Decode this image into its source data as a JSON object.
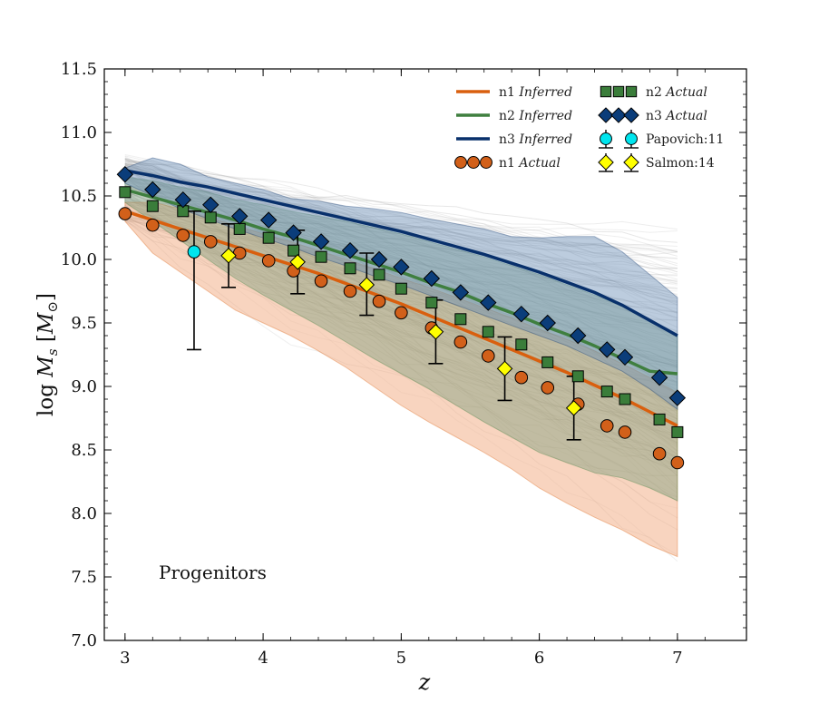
{
  "chart_data": {
    "type": "line",
    "title": "",
    "xlabel": "z",
    "ylabel_main": "log ",
    "ylabel_var": "M",
    "ylabel_sub": "s",
    "ylabel_unit_open": " [",
    "ylabel_unit_var": "M",
    "ylabel_unit_sub": "⊙",
    "ylabel_unit_close": "]",
    "xlim": [
      2.85,
      7.5
    ],
    "ylim": [
      7.0,
      11.5
    ],
    "xticks": [
      3,
      4,
      5,
      6,
      7
    ],
    "xtick_labels": [
      "3",
      "4",
      "5",
      "6",
      "7"
    ],
    "yticks": [
      7.0,
      7.5,
      8.0,
      8.5,
      9.0,
      9.5,
      10.0,
      10.5,
      11.0,
      11.5
    ],
    "ytick_labels": [
      "7.0",
      "7.5",
      "8.0",
      "8.5",
      "9.0",
      "9.5",
      "10.0",
      "10.5",
      "11.0",
      "11.5"
    ],
    "annotation": "Progenitors",
    "legend_position": "top-right",
    "colors": {
      "n1": "#d95f0e",
      "n2": "#3f7f3f",
      "n3": "#08306b",
      "n1_band": "#f0a070",
      "n2_band": "#7fa07f",
      "n3_band": "#6a8fb5",
      "papovich": "#00e5ee",
      "salmon": "#ffff00",
      "square_fill": "#3a7d3a",
      "diamond_fill": "#0b3d7a",
      "circle_fill": "#d2601a",
      "tracks": "#9a9a9a"
    },
    "inferred_x": [
      3,
      3.2,
      3.4,
      3.6,
      3.8,
      4.0,
      4.2,
      4.4,
      4.6,
      4.8,
      5.0,
      5.2,
      5.4,
      5.6,
      5.8,
      6.0,
      6.2,
      6.4,
      6.6,
      6.8,
      7.0
    ],
    "inferred_series": [
      {
        "name": "n1",
        "label": "n1",
        "label_em": "Inferred",
        "values": [
          10.38,
          10.31,
          10.24,
          10.17,
          10.1,
          10.03,
          9.96,
          9.89,
          9.81,
          9.73,
          9.65,
          9.56,
          9.47,
          9.38,
          9.29,
          9.2,
          9.11,
          9.01,
          8.91,
          8.8,
          8.69
        ],
        "band_low": [
          10.3,
          10.05,
          9.9,
          9.75,
          9.6,
          9.5,
          9.4,
          9.28,
          9.15,
          9.0,
          8.85,
          8.72,
          8.6,
          8.48,
          8.35,
          8.2,
          8.08,
          7.97,
          7.87,
          7.75,
          7.66
        ],
        "band_high": [
          10.45,
          10.45,
          10.4,
          10.33,
          10.27,
          10.2,
          10.14,
          10.07,
          10.0,
          9.93,
          9.85,
          9.78,
          9.7,
          9.62,
          9.54,
          9.45,
          9.37,
          9.28,
          9.18,
          9.07,
          8.95
        ]
      },
      {
        "name": "n2",
        "label": "n2",
        "label_em": "Inferred",
        "values": [
          10.55,
          10.49,
          10.43,
          10.37,
          10.31,
          10.24,
          10.18,
          10.11,
          10.04,
          9.97,
          9.9,
          9.82,
          9.75,
          9.66,
          9.58,
          9.49,
          9.41,
          9.32,
          9.22,
          9.12,
          9.1
        ],
        "band_low": [
          10.45,
          10.3,
          10.15,
          10.0,
          9.85,
          9.72,
          9.6,
          9.48,
          9.35,
          9.22,
          9.1,
          8.98,
          8.85,
          8.72,
          8.6,
          8.48,
          8.4,
          8.32,
          8.28,
          8.2,
          8.1
        ],
        "band_high": [
          10.65,
          10.62,
          10.57,
          10.53,
          10.47,
          10.43,
          10.38,
          10.34,
          10.3,
          10.25,
          10.2,
          10.14,
          10.08,
          10.02,
          9.95,
          9.88,
          9.8,
          9.72,
          9.63,
          9.52,
          9.4
        ]
      },
      {
        "name": "n3",
        "label": "n3",
        "label_em": "Inferred",
        "values": [
          10.7,
          10.66,
          10.61,
          10.57,
          10.52,
          10.47,
          10.42,
          10.37,
          10.32,
          10.27,
          10.22,
          10.16,
          10.1,
          10.04,
          9.97,
          9.9,
          9.82,
          9.74,
          9.64,
          9.52,
          9.4
        ],
        "band_low": [
          10.6,
          10.5,
          10.4,
          10.32,
          10.24,
          10.17,
          10.1,
          10.02,
          9.95,
          9.87,
          9.8,
          9.72,
          9.64,
          9.56,
          9.48,
          9.4,
          9.32,
          9.22,
          9.12,
          8.98,
          8.82
        ],
        "band_high": [
          10.72,
          10.8,
          10.75,
          10.65,
          10.6,
          10.55,
          10.48,
          10.46,
          10.42,
          10.4,
          10.37,
          10.32,
          10.28,
          10.24,
          10.18,
          10.17,
          10.18,
          10.18,
          10.06,
          9.88,
          9.7
        ]
      }
    ],
    "actual_series": [
      {
        "name": "n1",
        "label": "n1",
        "label_em": "Actual",
        "marker": "circle",
        "x": [
          3.0,
          3.2,
          3.42,
          3.62,
          3.83,
          4.04,
          4.22,
          4.42,
          4.63,
          4.84,
          5.0,
          5.22,
          5.43,
          5.63,
          5.87,
          6.06,
          6.28,
          6.49,
          6.62,
          6.87,
          7.0
        ],
        "y": [
          10.36,
          10.27,
          10.19,
          10.14,
          10.05,
          9.99,
          9.91,
          9.83,
          9.75,
          9.67,
          9.58,
          9.46,
          9.35,
          9.24,
          9.07,
          8.99,
          8.86,
          8.69,
          8.64,
          8.47,
          8.4
        ]
      },
      {
        "name": "n2",
        "label": "n2",
        "label_em": "Actual",
        "marker": "square",
        "x": [
          3.0,
          3.2,
          3.42,
          3.62,
          3.83,
          4.04,
          4.22,
          4.42,
          4.63,
          4.84,
          5.0,
          5.22,
          5.43,
          5.63,
          5.87,
          6.06,
          6.28,
          6.49,
          6.62,
          6.87,
          7.0
        ],
        "y": [
          10.53,
          10.42,
          10.38,
          10.33,
          10.24,
          10.17,
          10.07,
          10.02,
          9.93,
          9.88,
          9.77,
          9.66,
          9.53,
          9.43,
          9.33,
          9.19,
          9.08,
          8.96,
          8.9,
          8.74,
          8.64
        ]
      },
      {
        "name": "n3",
        "label": "n3",
        "label_em": "Actual",
        "marker": "diamond",
        "x": [
          3.0,
          3.2,
          3.42,
          3.62,
          3.83,
          4.04,
          4.22,
          4.42,
          4.63,
          4.84,
          5.0,
          5.22,
          5.43,
          5.63,
          5.87,
          6.06,
          6.28,
          6.49,
          6.62,
          6.87,
          7.0
        ],
        "y": [
          10.67,
          10.55,
          10.47,
          10.43,
          10.34,
          10.31,
          10.21,
          10.14,
          10.07,
          10.0,
          9.94,
          9.85,
          9.74,
          9.66,
          9.57,
          9.5,
          9.4,
          9.29,
          9.23,
          9.07,
          8.91
        ]
      }
    ],
    "observations": [
      {
        "name": "papovich",
        "label": "Papovich:11",
        "marker": "circle",
        "points": [
          {
            "x": 3.5,
            "y": 10.06,
            "lo": 9.29,
            "hi": 10.38
          }
        ]
      },
      {
        "name": "salmon",
        "label": "Salmon:14",
        "marker": "diamond",
        "points": [
          {
            "x": 3.75,
            "y": 10.03,
            "lo": 9.78,
            "hi": 10.28
          },
          {
            "x": 4.25,
            "y": 9.98,
            "lo": 9.73,
            "hi": 10.23
          },
          {
            "x": 4.75,
            "y": 9.8,
            "lo": 9.56,
            "hi": 10.05
          },
          {
            "x": 5.25,
            "y": 9.43,
            "lo": 9.18,
            "hi": 9.68
          },
          {
            "x": 5.75,
            "y": 9.14,
            "lo": 8.89,
            "hi": 9.39
          },
          {
            "x": 6.25,
            "y": 8.83,
            "lo": 8.58,
            "hi": 9.08
          }
        ]
      }
    ]
  }
}
